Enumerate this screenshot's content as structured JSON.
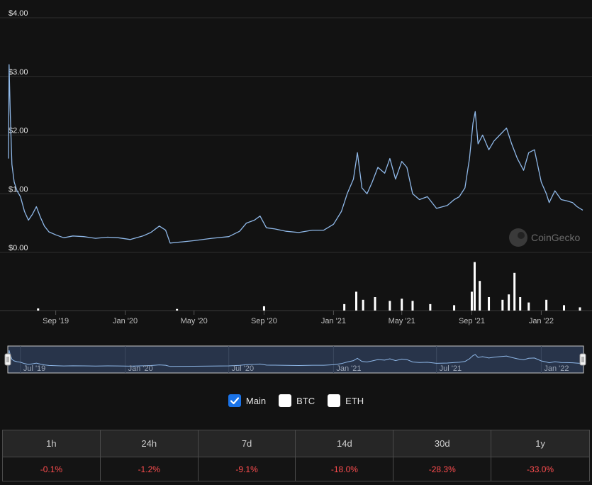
{
  "chart_data": {
    "type": "line",
    "y_axis": {
      "ticks": [
        "$4.00",
        "$3.00",
        "$2.00",
        "$1.00",
        "$0.00"
      ],
      "ylim": [
        0,
        4
      ]
    },
    "x_axis": {
      "ticks": [
        "Sep '19",
        "Jan '20",
        "May '20",
        "Sep '20",
        "Jan '21",
        "May '21",
        "Sep '21",
        "Jan '22"
      ]
    },
    "series": [
      {
        "x": [
          "2019-06-10",
          "2019-06-11",
          "2019-06-13",
          "2019-06-16",
          "2019-06-20",
          "2019-06-25",
          "2019-07-01",
          "2019-07-08",
          "2019-07-15",
          "2019-07-22",
          "2019-07-29",
          "2019-08-05",
          "2019-08-12",
          "2019-08-20",
          "2019-09-01",
          "2019-09-15",
          "2019-10-01",
          "2019-10-20",
          "2019-11-10",
          "2019-12-01",
          "2019-12-20",
          "2020-01-10",
          "2020-02-01",
          "2020-02-15",
          "2020-03-01",
          "2020-03-12",
          "2020-03-20",
          "2020-04-10",
          "2020-05-01",
          "2020-06-01",
          "2020-07-01",
          "2020-07-20",
          "2020-08-01",
          "2020-08-15",
          "2020-08-25",
          "2020-09-05",
          "2020-09-20",
          "2020-10-10",
          "2020-11-01",
          "2020-11-25",
          "2020-12-15",
          "2021-01-01",
          "2021-01-15",
          "2021-01-25",
          "2021-02-05",
          "2021-02-12",
          "2021-02-20",
          "2021-03-01",
          "2021-03-10",
          "2021-03-20",
          "2021-04-01",
          "2021-04-10",
          "2021-04-20",
          "2021-05-01",
          "2021-05-10",
          "2021-05-20",
          "2021-06-01",
          "2021-06-15",
          "2021-07-01",
          "2021-07-20",
          "2021-08-01",
          "2021-08-10",
          "2021-08-20",
          "2021-08-28",
          "2021-09-03",
          "2021-09-07",
          "2021-09-12",
          "2021-09-20",
          "2021-10-01",
          "2021-10-10",
          "2021-10-20",
          "2021-11-01",
          "2021-11-10",
          "2021-11-20",
          "2021-12-01",
          "2021-12-10",
          "2021-12-20",
          "2022-01-01",
          "2022-01-10",
          "2022-01-15",
          "2022-01-25",
          "2022-02-05",
          "2022-02-15",
          "2022-02-25",
          "2022-03-05",
          "2022-03-15"
        ],
        "y": [
          1.6,
          3.2,
          2.4,
          1.5,
          1.2,
          1.05,
          0.95,
          0.7,
          0.55,
          0.65,
          0.78,
          0.6,
          0.45,
          0.35,
          0.3,
          0.25,
          0.28,
          0.27,
          0.24,
          0.26,
          0.25,
          0.22,
          0.28,
          0.34,
          0.45,
          0.38,
          0.16,
          0.18,
          0.2,
          0.24,
          0.27,
          0.36,
          0.5,
          0.55,
          0.62,
          0.42,
          0.4,
          0.36,
          0.34,
          0.38,
          0.38,
          0.48,
          0.7,
          1.0,
          1.25,
          1.7,
          1.1,
          1.0,
          1.2,
          1.45,
          1.35,
          1.6,
          1.25,
          1.55,
          1.45,
          1.0,
          0.9,
          0.95,
          0.75,
          0.8,
          0.9,
          0.95,
          1.1,
          1.6,
          2.2,
          2.4,
          1.85,
          2.0,
          1.75,
          1.9,
          2.0,
          2.12,
          1.85,
          1.6,
          1.4,
          1.7,
          1.75,
          1.2,
          1.0,
          0.85,
          1.05,
          0.9,
          0.88,
          0.85,
          0.78,
          0.72
        ]
      }
    ],
    "volume": {
      "x": [
        "2019-08-01",
        "2020-04-01",
        "2020-09-01",
        "2021-01-20",
        "2021-02-10",
        "2021-02-22",
        "2021-03-15",
        "2021-04-10",
        "2021-05-01",
        "2021-05-20",
        "2021-06-20",
        "2021-08-01",
        "2021-09-01",
        "2021-09-06",
        "2021-09-15",
        "2021-10-01",
        "2021-10-25",
        "2021-11-05",
        "2021-11-15",
        "2021-11-25",
        "2021-12-10",
        "2022-01-10",
        "2022-02-10",
        "2022-03-10"
      ],
      "y": [
        0.04,
        0.03,
        0.08,
        0.12,
        0.35,
        0.2,
        0.25,
        0.18,
        0.22,
        0.18,
        0.12,
        0.1,
        0.35,
        0.9,
        0.55,
        0.25,
        0.2,
        0.3,
        0.7,
        0.25,
        0.15,
        0.2,
        0.1,
        0.06
      ]
    },
    "grid": true
  },
  "watermark": "CoinGecko",
  "navigator": {
    "ticks": [
      "Jul '19",
      "Jan '20",
      "Jul '20",
      "Jan '21",
      "Jul '21",
      "Jan '22"
    ]
  },
  "legend": [
    {
      "label": "Main",
      "checked": true
    },
    {
      "label": "BTC",
      "checked": false
    },
    {
      "label": "ETH",
      "checked": false
    }
  ],
  "changes": [
    {
      "period": "1h",
      "value": "-0.1%"
    },
    {
      "period": "24h",
      "value": "-1.2%"
    },
    {
      "period": "7d",
      "value": "-9.1%"
    },
    {
      "period": "14d",
      "value": "-18.0%"
    },
    {
      "period": "30d",
      "value": "-28.3%"
    },
    {
      "period": "1y",
      "value": "-33.0%"
    }
  ],
  "colors": {
    "line": "#8fb8e8",
    "negative": "#ff4d4f",
    "checkbox": "#1a73e8"
  }
}
